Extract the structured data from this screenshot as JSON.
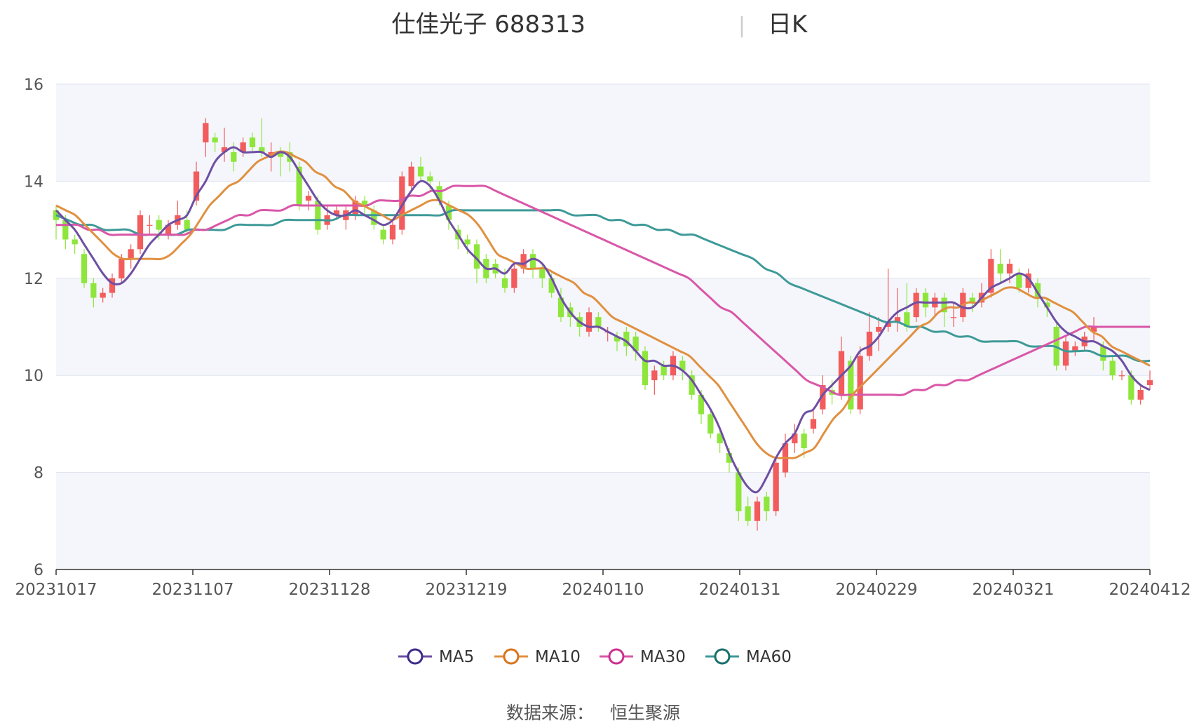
{
  "title": "仕佳光子 688313",
  "subtitle": "日K",
  "source_label": "数据来源：",
  "source_value": "恒生聚源",
  "colors": {
    "up": "#f25c5c",
    "down": "#8ee63c",
    "ma5": "#6e4fa3",
    "ma10": "#e09040",
    "ma30": "#d957a8",
    "ma60": "#3e9a98",
    "grid": "#dde3ef",
    "band": "#f4f6fb"
  },
  "chart_data": {
    "type": "candlestick",
    "ylim": [
      6,
      16
    ],
    "y_ticks": [
      6,
      8,
      10,
      12,
      14,
      16
    ],
    "x_tick_labels": [
      "20231017",
      "20231107",
      "20231128",
      "20231219",
      "20240110",
      "20240131",
      "20240229",
      "20240321",
      "20240412"
    ],
    "legend_position": "bottom",
    "series_names": [
      "MA5",
      "MA10",
      "MA30",
      "MA60"
    ],
    "candles": [
      [
        13.4,
        13.2,
        13.5,
        12.8
      ],
      [
        13.2,
        12.8,
        13.3,
        12.6
      ],
      [
        12.8,
        12.7,
        12.9,
        12.5
      ],
      [
        12.5,
        11.9,
        12.6,
        11.8
      ],
      [
        11.9,
        11.6,
        12.0,
        11.4
      ],
      [
        11.6,
        11.7,
        11.8,
        11.5
      ],
      [
        11.7,
        12.0,
        12.1,
        11.6
      ],
      [
        12.0,
        12.4,
        12.5,
        11.9
      ],
      [
        12.4,
        12.6,
        12.7,
        12.2
      ],
      [
        12.6,
        13.3,
        13.4,
        12.5
      ],
      [
        13.1,
        13.1,
        13.3,
        12.9
      ],
      [
        13.2,
        13.0,
        13.3,
        12.8
      ],
      [
        12.9,
        13.1,
        13.2,
        12.8
      ],
      [
        13.1,
        13.3,
        13.6,
        13.0
      ],
      [
        13.2,
        13.0,
        13.4,
        12.9
      ],
      [
        13.6,
        14.2,
        14.4,
        13.5
      ],
      [
        14.8,
        15.2,
        15.3,
        14.5
      ],
      [
        14.9,
        14.8,
        15.0,
        14.6
      ],
      [
        14.6,
        14.7,
        15.1,
        14.4
      ],
      [
        14.6,
        14.4,
        14.8,
        14.2
      ],
      [
        14.6,
        14.8,
        14.9,
        14.5
      ],
      [
        14.9,
        14.7,
        15.0,
        14.6
      ],
      [
        14.7,
        14.6,
        15.3,
        14.5
      ],
      [
        14.5,
        14.6,
        14.8,
        14.2
      ],
      [
        14.6,
        14.5,
        14.7,
        14.1
      ],
      [
        14.6,
        14.4,
        14.8,
        14.2
      ],
      [
        14.3,
        13.5,
        14.4,
        13.4
      ],
      [
        13.6,
        13.7,
        13.8,
        13.4
      ],
      [
        13.6,
        13.0,
        13.7,
        12.9
      ],
      [
        13.1,
        13.3,
        13.5,
        13.0
      ],
      [
        13.3,
        13.4,
        13.5,
        13.2
      ],
      [
        13.2,
        13.4,
        13.5,
        13.0
      ],
      [
        13.3,
        13.6,
        13.7,
        13.2
      ],
      [
        13.6,
        13.5,
        13.7,
        13.3
      ],
      [
        13.4,
        13.1,
        13.5,
        13.0
      ],
      [
        13.0,
        12.8,
        13.1,
        12.7
      ],
      [
        12.8,
        13.1,
        13.2,
        12.7
      ],
      [
        13.0,
        14.1,
        14.2,
        12.9
      ],
      [
        13.9,
        14.3,
        14.4,
        13.8
      ],
      [
        14.3,
        14.1,
        14.5,
        14.0
      ],
      [
        14.1,
        14.0,
        14.2,
        13.8
      ],
      [
        13.9,
        13.6,
        14.0,
        13.5
      ],
      [
        13.5,
        13.2,
        13.6,
        13.0
      ],
      [
        13.0,
        12.8,
        13.1,
        12.6
      ],
      [
        12.8,
        12.7,
        12.9,
        12.5
      ],
      [
        12.7,
        12.2,
        12.8,
        11.9
      ],
      [
        12.4,
        12.0,
        12.5,
        11.9
      ],
      [
        12.3,
        12.1,
        12.4,
        12.0
      ],
      [
        12.0,
        11.8,
        12.2,
        11.7
      ],
      [
        11.8,
        12.2,
        12.3,
        11.7
      ],
      [
        12.2,
        12.5,
        12.6,
        12.1
      ],
      [
        12.5,
        12.2,
        12.6,
        12.0
      ],
      [
        12.2,
        12.0,
        12.3,
        11.8
      ],
      [
        12.0,
        11.7,
        12.1,
        11.6
      ],
      [
        11.6,
        11.2,
        11.8,
        11.1
      ],
      [
        11.4,
        11.2,
        11.5,
        11.0
      ],
      [
        11.2,
        11.0,
        11.3,
        10.8
      ],
      [
        10.9,
        11.3,
        11.4,
        10.8
      ],
      [
        11.2,
        11.0,
        11.3,
        10.9
      ],
      [
        10.9,
        10.9,
        11.0,
        10.7
      ],
      [
        10.8,
        10.7,
        10.9,
        10.5
      ],
      [
        10.9,
        10.6,
        11.0,
        10.4
      ],
      [
        10.8,
        10.5,
        10.9,
        10.3
      ],
      [
        10.5,
        9.8,
        10.6,
        9.7
      ],
      [
        9.9,
        10.1,
        10.2,
        9.6
      ],
      [
        10.2,
        10.0,
        10.3,
        9.9
      ],
      [
        10.0,
        10.4,
        10.5,
        9.9
      ],
      [
        10.3,
        10.1,
        10.4,
        9.9
      ],
      [
        10.0,
        9.6,
        10.1,
        9.5
      ],
      [
        9.6,
        9.2,
        9.7,
        9.0
      ],
      [
        9.2,
        8.8,
        9.3,
        8.7
      ],
      [
        8.8,
        8.6,
        8.9,
        8.4
      ],
      [
        8.4,
        8.2,
        8.5,
        8.0
      ],
      [
        8.0,
        7.2,
        8.1,
        7.0
      ],
      [
        7.3,
        7.0,
        7.5,
        6.9
      ],
      [
        7.0,
        7.4,
        7.5,
        6.8
      ],
      [
        7.5,
        7.2,
        7.6,
        7.0
      ],
      [
        7.2,
        8.2,
        8.3,
        7.1
      ],
      [
        8.0,
        8.6,
        8.8,
        7.9
      ],
      [
        8.6,
        8.8,
        9.0,
        8.4
      ],
      [
        8.8,
        8.5,
        8.9,
        8.3
      ],
      [
        8.9,
        9.1,
        9.3,
        8.8
      ],
      [
        9.3,
        9.8,
        10.0,
        9.2
      ],
      [
        9.7,
        9.6,
        9.9,
        9.4
      ],
      [
        9.6,
        10.5,
        10.8,
        9.5
      ],
      [
        10.3,
        9.3,
        10.4,
        9.2
      ],
      [
        9.3,
        10.4,
        10.6,
        9.2
      ],
      [
        10.4,
        10.9,
        11.3,
        10.3
      ],
      [
        10.9,
        11.0,
        11.2,
        10.5
      ],
      [
        11.0,
        11.1,
        12.2,
        10.9
      ],
      [
        11.1,
        11.2,
        11.8,
        10.9
      ],
      [
        11.3,
        11.0,
        11.9,
        10.9
      ],
      [
        11.2,
        11.7,
        11.8,
        11.1
      ],
      [
        11.7,
        11.4,
        11.8,
        11.2
      ],
      [
        11.4,
        11.6,
        11.7,
        11.2
      ],
      [
        11.6,
        11.3,
        11.7,
        11.0
      ],
      [
        11.2,
        11.2,
        11.5,
        11.0
      ],
      [
        11.2,
        11.7,
        11.8,
        11.1
      ],
      [
        11.6,
        11.5,
        11.7,
        11.3
      ],
      [
        11.5,
        11.7,
        11.9,
        11.4
      ],
      [
        11.7,
        12.4,
        12.6,
        11.6
      ],
      [
        12.3,
        12.1,
        12.6,
        11.9
      ],
      [
        12.1,
        12.3,
        12.4,
        11.9
      ],
      [
        12.1,
        11.8,
        12.2,
        11.7
      ],
      [
        11.8,
        12.1,
        12.2,
        11.7
      ],
      [
        11.9,
        11.6,
        12.0,
        11.4
      ],
      [
        11.5,
        11.4,
        11.6,
        11.2
      ],
      [
        11.0,
        10.2,
        11.1,
        10.1
      ],
      [
        10.2,
        10.7,
        10.8,
        10.1
      ],
      [
        10.5,
        10.6,
        10.7,
        10.4
      ],
      [
        10.6,
        10.8,
        10.9,
        10.5
      ],
      [
        10.9,
        11.0,
        11.2,
        10.7
      ],
      [
        10.6,
        10.3,
        10.7,
        10.1
      ],
      [
        10.3,
        10.0,
        10.4,
        9.9
      ],
      [
        10.0,
        10.0,
        10.1,
        9.9
      ],
      [
        10.0,
        9.5,
        10.1,
        9.4
      ],
      [
        9.5,
        9.7,
        9.8,
        9.4
      ],
      [
        9.8,
        9.9,
        10.1,
        9.7
      ]
    ],
    "ma5": [
      13.4,
      13.2,
      13.0,
      12.7,
      12.4,
      12.1,
      11.9,
      11.9,
      12.1,
      12.4,
      12.7,
      12.9,
      13.1,
      13.2,
      13.3,
      13.7,
      14.0,
      14.4,
      14.6,
      14.7,
      14.6,
      14.6,
      14.6,
      14.5,
      14.6,
      14.5,
      14.2,
      13.9,
      13.6,
      13.4,
      13.3,
      13.3,
      13.4,
      13.3,
      13.2,
      13.1,
      13.2,
      13.5,
      13.8,
      14.0,
      13.9,
      13.6,
      13.2,
      12.9,
      12.6,
      12.4,
      12.2,
      12.2,
      12.1,
      12.3,
      12.3,
      12.4,
      12.3,
      12.0,
      11.6,
      11.3,
      11.1,
      11.0,
      11.0,
      10.9,
      10.8,
      10.7,
      10.5,
      10.3,
      10.3,
      10.2,
      10.2,
      10.1,
      9.9,
      9.6,
      9.3,
      8.9,
      8.4,
      8.0,
      7.7,
      7.6,
      7.9,
      8.3,
      8.6,
      8.8,
      9.2,
      9.3,
      9.6,
      9.8,
      10.0,
      10.2,
      10.5,
      10.6,
      10.8,
      11.1,
      11.3,
      11.4,
      11.5,
      11.5,
      11.5,
      11.5,
      11.5,
      11.4,
      11.4,
      11.6,
      11.8,
      11.9,
      12.0,
      12.1,
      12.0,
      11.7,
      11.4,
      11.1,
      10.9,
      10.8,
      10.7,
      10.7,
      10.6,
      10.5,
      10.3,
      10.0,
      9.8,
      9.7
    ],
    "ma10": [
      13.5,
      13.4,
      13.3,
      13.1,
      12.9,
      12.7,
      12.5,
      12.4,
      12.4,
      12.4,
      12.4,
      12.4,
      12.5,
      12.7,
      12.9,
      13.2,
      13.5,
      13.7,
      13.9,
      14.0,
      14.2,
      14.4,
      14.5,
      14.6,
      14.6,
      14.5,
      14.4,
      14.2,
      14.1,
      13.9,
      13.8,
      13.6,
      13.5,
      13.4,
      13.3,
      13.2,
      13.3,
      13.4,
      13.5,
      13.6,
      13.6,
      13.5,
      13.4,
      13.3,
      13.1,
      12.8,
      12.5,
      12.4,
      12.3,
      12.2,
      12.2,
      12.2,
      12.1,
      12.0,
      11.9,
      11.7,
      11.6,
      11.4,
      11.2,
      11.1,
      11.0,
      10.9,
      10.8,
      10.7,
      10.6,
      10.5,
      10.4,
      10.2,
      10.0,
      9.8,
      9.5,
      9.2,
      8.9,
      8.6,
      8.4,
      8.3,
      8.3,
      8.3,
      8.4,
      8.5,
      8.8,
      9.1,
      9.3,
      9.6,
      9.8,
      10.0,
      10.2,
      10.4,
      10.6,
      10.8,
      11.0,
      11.1,
      11.3,
      11.4,
      11.4,
      11.5,
      11.5,
      11.6,
      11.7,
      11.8,
      11.8,
      11.7,
      11.6,
      11.6,
      11.5,
      11.4,
      11.3,
      11.1,
      10.9,
      10.8,
      10.6,
      10.5,
      10.4,
      10.3,
      10.2
    ],
    "ma30": [
      13.1,
      13.1,
      13.1,
      13.0,
      13.0,
      12.9,
      12.9,
      12.9,
      12.9,
      12.9,
      12.9,
      12.9,
      12.9,
      13.0,
      13.0,
      13.1,
      13.2,
      13.3,
      13.3,
      13.4,
      13.4,
      13.4,
      13.5,
      13.5,
      13.5,
      13.5,
      13.5,
      13.5,
      13.5,
      13.5,
      13.6,
      13.6,
      13.6,
      13.7,
      13.7,
      13.8,
      13.8,
      13.9,
      13.9,
      13.9,
      13.9,
      13.8,
      13.7,
      13.6,
      13.5,
      13.4,
      13.3,
      13.2,
      13.1,
      13.0,
      12.9,
      12.8,
      12.7,
      12.6,
      12.5,
      12.4,
      12.3,
      12.2,
      12.1,
      12.0,
      11.8,
      11.6,
      11.4,
      11.3,
      11.1,
      10.9,
      10.7,
      10.5,
      10.3,
      10.1,
      9.9,
      9.8,
      9.7,
      9.6,
      9.6,
      9.6,
      9.6,
      9.6,
      9.6,
      9.6,
      9.7,
      9.7,
      9.8,
      9.8,
      9.9,
      9.9,
      10.0,
      10.1,
      10.2,
      10.3,
      10.4,
      10.5,
      10.6,
      10.7,
      10.8,
      10.9,
      11.0,
      11.0,
      11.0,
      11.0,
      11.0,
      11.0,
      11.0
    ],
    "ma60": [
      13.3,
      13.2,
      13.1,
      13.1,
      13.0,
      13.0,
      13.0,
      12.9,
      12.9,
      12.9,
      12.9,
      13.0,
      13.0,
      13.0,
      13.0,
      13.1,
      13.1,
      13.1,
      13.1,
      13.2,
      13.2,
      13.2,
      13.2,
      13.2,
      13.3,
      13.3,
      13.3,
      13.3,
      13.3,
      13.3,
      13.3,
      13.3,
      13.3,
      13.4,
      13.4,
      13.4,
      13.4,
      13.4,
      13.4,
      13.4,
      13.4,
      13.4,
      13.4,
      13.3,
      13.3,
      13.3,
      13.2,
      13.2,
      13.1,
      13.1,
      13.0,
      13.0,
      12.9,
      12.9,
      12.8,
      12.7,
      12.6,
      12.5,
      12.4,
      12.2,
      12.1,
      11.9,
      11.8,
      11.7,
      11.6,
      11.5,
      11.4,
      11.3,
      11.2,
      11.1,
      11.1,
      11.0,
      11.0,
      10.9,
      10.9,
      10.8,
      10.8,
      10.7,
      10.7,
      10.7,
      10.7,
      10.6,
      10.6,
      10.6,
      10.5,
      10.5,
      10.5,
      10.4,
      10.4,
      10.4,
      10.3,
      10.3
    ]
  }
}
